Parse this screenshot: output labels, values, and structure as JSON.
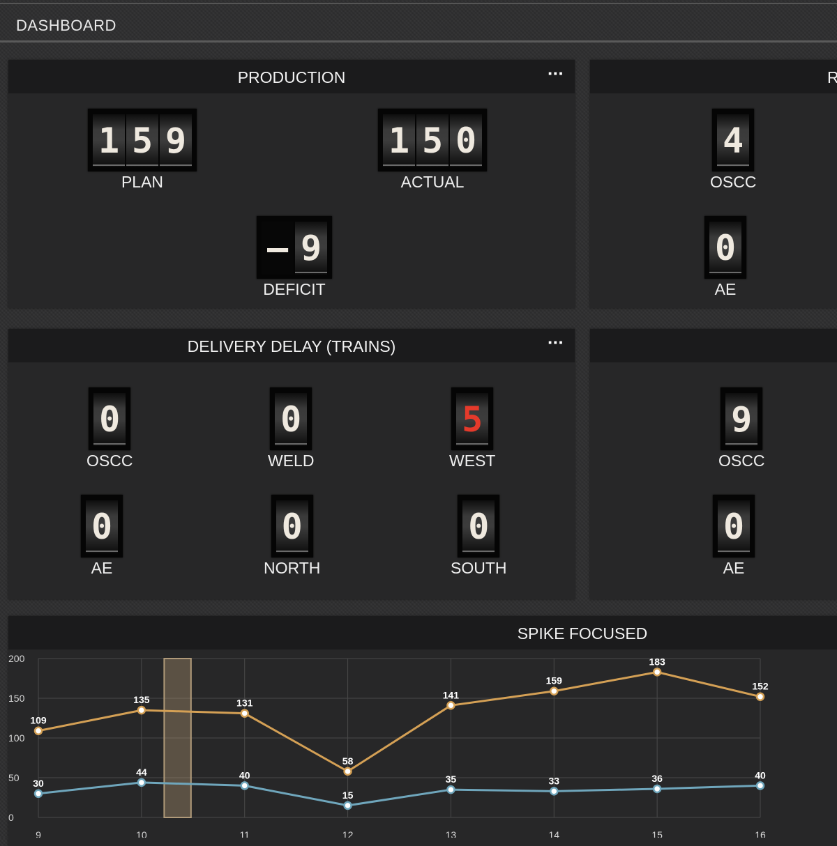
{
  "header": {
    "title": "DASHBOARD"
  },
  "production": {
    "title": "PRODUCTION",
    "menu": "···",
    "plan": {
      "value": "159",
      "label": "PLAN"
    },
    "actual": {
      "value": "150",
      "label": "ACTUAL"
    },
    "deficit": {
      "value": "-9",
      "label": "DEFICIT"
    }
  },
  "right_panel_1": {
    "title": "R",
    "oscc": {
      "value": "4",
      "label": "OSCC"
    },
    "ae": {
      "value": "0",
      "label": "AE"
    }
  },
  "delivery": {
    "title": "DELIVERY DELAY (TRAINS)",
    "menu": "···",
    "oscc": {
      "value": "0",
      "label": "OSCC"
    },
    "weld": {
      "value": "0",
      "label": "WELD"
    },
    "west": {
      "value": "5",
      "label": "WEST"
    },
    "ae": {
      "value": "0",
      "label": "AE"
    },
    "north": {
      "value": "0",
      "label": "NORTH"
    },
    "south": {
      "value": "0",
      "label": "SOUTH"
    }
  },
  "right_panel_2": {
    "oscc": {
      "value": "9",
      "label": "OSCC"
    },
    "ae": {
      "value": "0",
      "label": "AE"
    }
  },
  "chart_panel": {
    "title": "SPIKE FOCUSED"
  },
  "colors": {
    "orange": "#d4a055",
    "blue": "#6fa6bc",
    "red": "#e53a2b"
  },
  "chart_data": {
    "type": "line",
    "x": [
      9,
      10,
      11,
      12,
      13,
      14,
      15,
      16
    ],
    "y_ticks": [
      0,
      50,
      100,
      150,
      200
    ],
    "ylim": [
      0,
      200
    ],
    "grid": true,
    "series": [
      {
        "values": [
          109,
          135,
          131,
          58,
          141,
          159,
          183,
          152
        ],
        "color": "#d4a055"
      },
      {
        "values": [
          30,
          44,
          40,
          15,
          35,
          33,
          36,
          40
        ],
        "color": "#6fa6bc"
      }
    ],
    "highlight_band": {
      "x_start": 10.22,
      "x_end": 10.48
    }
  }
}
